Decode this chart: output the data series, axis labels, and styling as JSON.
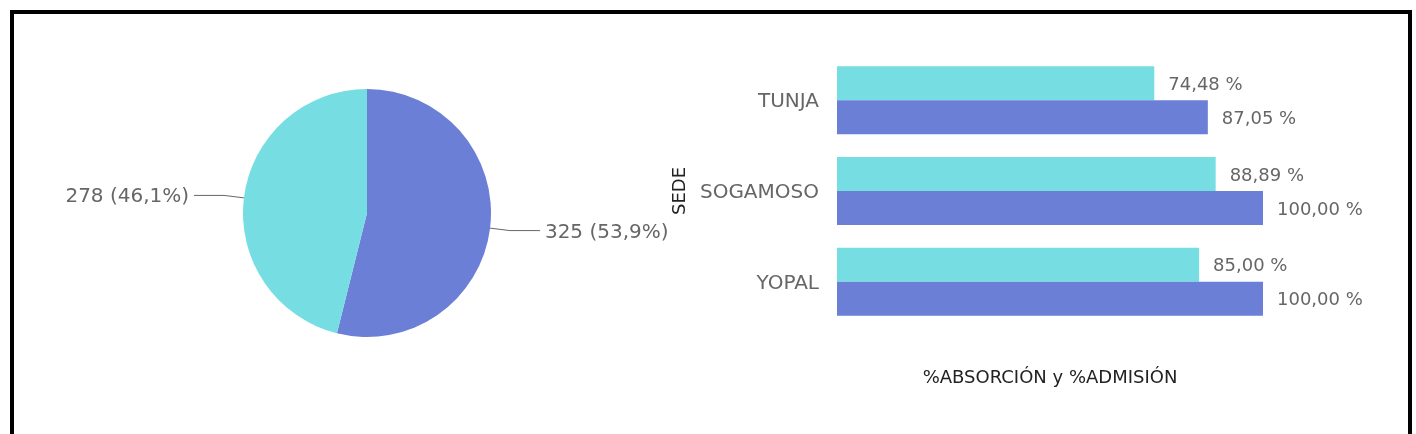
{
  "chart_data": [
    {
      "type": "pie",
      "categories": [
        null,
        null
      ],
      "values": [
        325,
        278
      ],
      "colors": [
        "#6b7fd7",
        "#76dee2"
      ],
      "value_labels": [
        "325 (53,9%)",
        "278 (46,1%)"
      ]
    },
    {
      "type": "bar",
      "orientation": "horizontal",
      "categories": [
        "TUNJA",
        "SOGAMOSO",
        "YOPAL"
      ],
      "xlabel": "%ABSORCIÓN y %ADMISIÓN",
      "ylabel": "SEDE",
      "series": [
        {
          "color": "#76dee2",
          "values": [
            74.48,
            88.89,
            85.0
          ],
          "value_labels": [
            "74,48 %",
            "88,89 %",
            "85,00 %"
          ]
        },
        {
          "color": "#6b7fd7",
          "values": [
            87.05,
            100.0,
            100.0
          ],
          "value_labels": [
            "87,05 %",
            "100,00 %",
            "100,00 %"
          ]
        }
      ]
    }
  ]
}
